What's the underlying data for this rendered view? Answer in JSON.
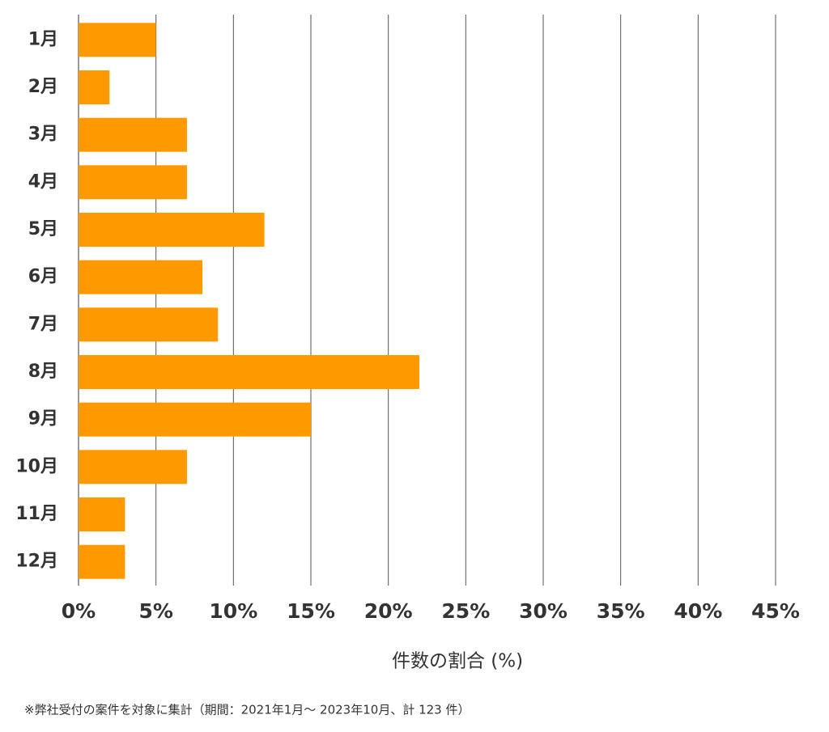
{
  "chart_data": {
    "type": "bar",
    "orientation": "horizontal",
    "categories": [
      "1月",
      "2月",
      "3月",
      "4月",
      "5月",
      "6月",
      "7月",
      "8月",
      "9月",
      "10月",
      "11月",
      "12月"
    ],
    "values": [
      5,
      2,
      7,
      7,
      12,
      8,
      9,
      22,
      15,
      7,
      3,
      3
    ],
    "color": "#ff9900",
    "xlim": [
      0,
      45
    ],
    "xticks": [
      {
        "value": 0,
        "label": "0%"
      },
      {
        "value": 5,
        "label": "5%"
      },
      {
        "value": 10,
        "label": "10%"
      },
      {
        "value": 15,
        "label": "15%"
      },
      {
        "value": 20,
        "label": "20%"
      },
      {
        "value": 25,
        "label": "25%"
      },
      {
        "value": 30,
        "label": "30%"
      },
      {
        "value": 35,
        "label": "35%"
      },
      {
        "value": 40,
        "label": "40%"
      },
      {
        "value": 45,
        "label": "45%"
      }
    ],
    "grid": true,
    "xlabel": "件数の割合 (%)",
    "footnote": "※弊社受付の案件を対象に集計（期間：2021年1月～ 2023年10月、計 123 件）"
  }
}
